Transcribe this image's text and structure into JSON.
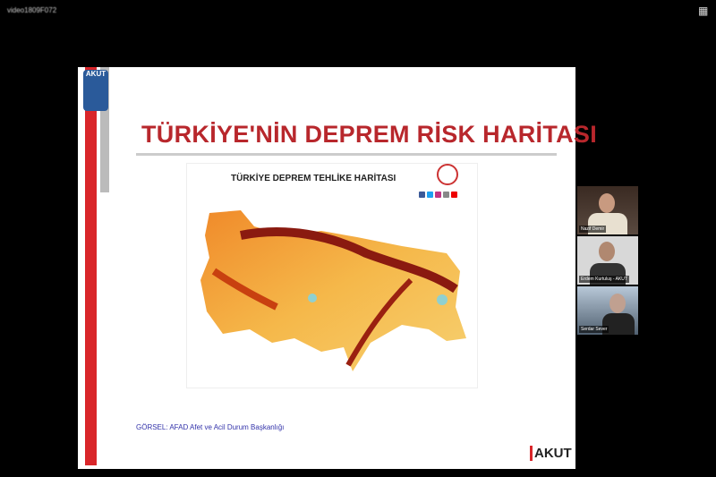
{
  "meeting": {
    "id_text": "video1809F072"
  },
  "slide": {
    "logo_text": "AKUT",
    "title": "TÜRKİYE'NİN DEPREM RİSK HARİTASI",
    "map_title": "TÜRKİYE DEPREM TEHLİKE HARİTASI",
    "caption": "GÖRSEL: AFAD Afet ve Acil Durum Başkanlığı",
    "footer_logo": "AKUT"
  },
  "participants": [
    {
      "name": "Nazif Demir"
    },
    {
      "name": "Erdem Kurtuluş - AKUT"
    },
    {
      "name": "Serdar Sever"
    }
  ],
  "colors": {
    "accent": "#d9262a",
    "title": "#b8272c"
  }
}
